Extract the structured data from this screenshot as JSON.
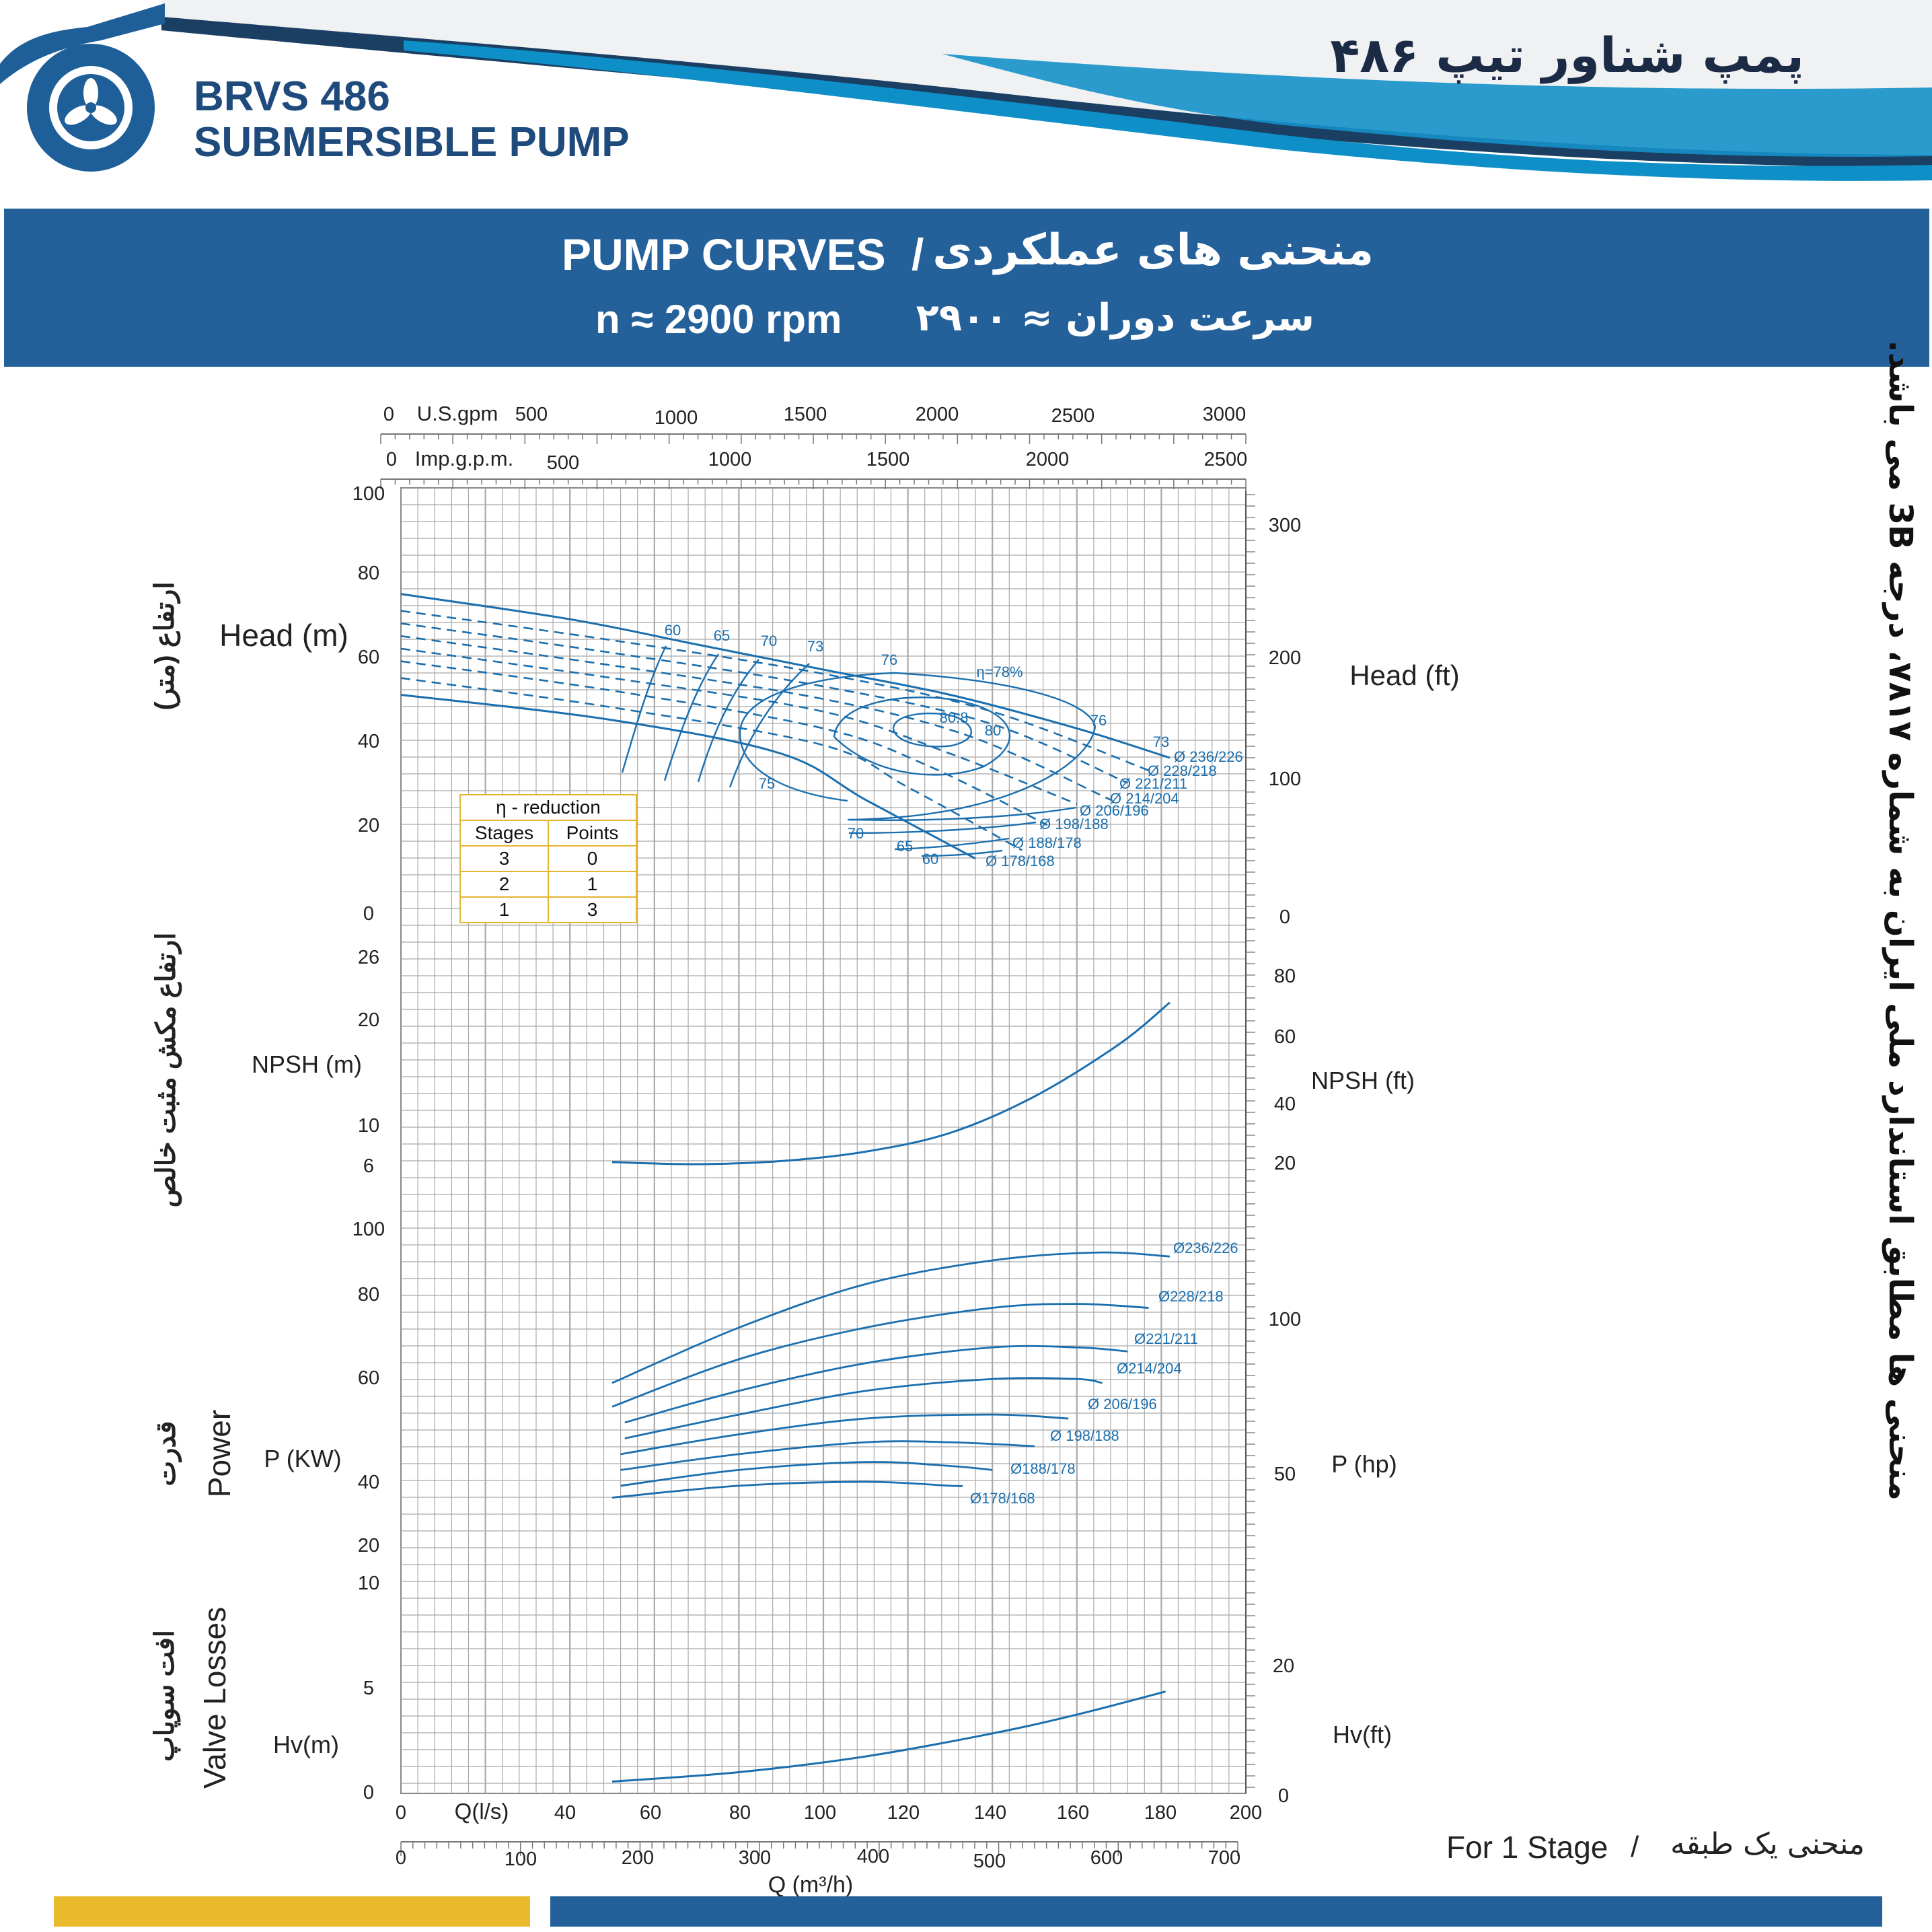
{
  "header": {
    "model": "BRVS 486",
    "type": "SUBMERSIBLE PUMP",
    "title_fa": "پمپ شناور تیپ ۴۸۶"
  },
  "banner": {
    "title_en": "PUMP CURVES",
    "separator": "/",
    "title_fa": "منحنی های عملکردی",
    "speed_en": "n ≈ 2900 rpm",
    "speed_fa": "سرعت دوران ≈ ۲۹۰۰"
  },
  "side_note_fa": "منحنی ها مطابق استاندارد ملی ایران به شماره ۷۸۱۷، درجه 3B می باشد.",
  "footer": {
    "stage_en": "For 1 Stage",
    "separator": "/",
    "stage_fa": "منحنی یک طبقه"
  },
  "colors": {
    "navy": "#24609a",
    "curve": "#1b6fae",
    "grid": "#a9a9a9",
    "footer_left": "#e9bb2c",
    "footer_right": "#24609a"
  },
  "chart_data": {
    "type": "line",
    "axes": {
      "top_usgpm": {
        "label": "U.S.gpm",
        "ticks": [
          0,
          500,
          1000,
          1500,
          2000,
          2500,
          3000
        ]
      },
      "top_impgpm": {
        "label": "Imp.g.p.m.",
        "ticks": [
          0,
          500,
          1000,
          1500,
          2000,
          2500
        ]
      },
      "bottom_ls": {
        "label": "Q(l/s)",
        "range": [
          0,
          200
        ],
        "ticks": [
          0,
          40,
          60,
          80,
          100,
          120,
          140,
          160,
          180,
          200
        ]
      },
      "bottom_m3h": {
        "label": "Q (m³/h)",
        "ticks": [
          0,
          100,
          200,
          300,
          400,
          500,
          600,
          700
        ]
      }
    },
    "head": {
      "label_en": "Head (m)",
      "label_fa": "ارتفاع (متر)",
      "label_ft": "Head (ft)",
      "ylim": [
        0,
        100
      ],
      "yticks": [
        0,
        20,
        40,
        60,
        80,
        100
      ],
      "ft_ticks": [
        0,
        100,
        200,
        300
      ],
      "impellers": [
        {
          "name": "Ø 236/226",
          "solid": [
            [
              0,
              76
            ],
            [
              40,
              70
            ],
            [
              70,
              64
            ],
            [
              100,
              58
            ],
            [
              130,
              52
            ],
            [
              160,
              44
            ],
            [
              182,
              37
            ]
          ]
        },
        {
          "name": "Ø 228/218",
          "dashed": [
            [
              0,
              72
            ],
            [
              50,
              65
            ],
            [
              100,
              57
            ],
            [
              140,
              48
            ],
            [
              177,
              34
            ]
          ]
        },
        {
          "name": "Ø 221/211",
          "dashed": [
            [
              0,
              69
            ],
            [
              50,
              62
            ],
            [
              100,
              54
            ],
            [
              140,
              45
            ],
            [
              172,
              31
            ]
          ]
        },
        {
          "name": "Ø 214/204",
          "dashed": [
            [
              0,
              66
            ],
            [
              50,
              59
            ],
            [
              100,
              51
            ],
            [
              135,
              42
            ],
            [
              168,
              27
            ]
          ]
        },
        {
          "name": "Ø 206/196",
          "dashed": [
            [
              0,
              63
            ],
            [
              50,
              56
            ],
            [
              100,
              48
            ],
            [
              130,
              38
            ],
            [
              160,
              26
            ]
          ]
        },
        {
          "name": "Ø 198/188",
          "dashed": [
            [
              0,
              60
            ],
            [
              50,
              53
            ],
            [
              100,
              44
            ],
            [
              125,
              35
            ],
            [
              153,
              21
            ]
          ]
        },
        {
          "name": "Ø 188/178",
          "dashed": [
            [
              0,
              56
            ],
            [
              50,
              49
            ],
            [
              100,
              40
            ],
            [
              120,
              30
            ],
            [
              147,
              15
            ]
          ]
        },
        {
          "name": "Ø 178/168",
          "solid": [
            [
              0,
              52
            ],
            [
              50,
              46
            ],
            [
              90,
              38
            ],
            [
              110,
              27
            ],
            [
              136,
              13
            ]
          ]
        }
      ],
      "efficiency_labels": [
        "60",
        "65",
        "70",
        "73",
        "75",
        "76",
        "η=78%",
        "80",
        "80.8"
      ],
      "reduction_table": {
        "title": "η - reduction",
        "columns": [
          "Stages",
          "Points"
        ],
        "rows": [
          [
            "3",
            "0"
          ],
          [
            "2",
            "1"
          ],
          [
            "1",
            "3"
          ]
        ]
      }
    },
    "npsh": {
      "label_en": "NPSH (m)",
      "label_fa": "ارتفاع مکش مثبت خالص",
      "label_ft": "NPSH (ft)",
      "yticks": [
        6,
        10,
        20,
        26
      ],
      "ft_ticks": [
        20,
        40,
        60,
        80
      ],
      "points": [
        [
          50,
          6.2
        ],
        [
          70,
          6.0
        ],
        [
          90,
          6.3
        ],
        [
          110,
          7.2
        ],
        [
          130,
          9.0
        ],
        [
          150,
          12.5
        ],
        [
          170,
          17.5
        ],
        [
          182,
          21.5
        ]
      ]
    },
    "power": {
      "label_en": "Power",
      "label_unit": "P (KW)",
      "label_fa": "قدرت",
      "label_hp": "P (hp)",
      "yticks": [
        20,
        40,
        60,
        80,
        100
      ],
      "hp_ticks": [
        50,
        100
      ],
      "series": [
        {
          "name": "Ø236/226",
          "points": [
            [
              50,
              61
            ],
            [
              80,
              75
            ],
            [
              110,
              86
            ],
            [
              140,
              92
            ],
            [
              165,
              94
            ],
            [
              182,
              93
            ]
          ]
        },
        {
          "name": "Ø228/218",
          "points": [
            [
              50,
              55
            ],
            [
              80,
              67
            ],
            [
              110,
              75
            ],
            [
              140,
              80
            ],
            [
              160,
              81
            ],
            [
              177,
              80
            ]
          ]
        },
        {
          "name": "Ø221/211",
          "points": [
            [
              53,
              51
            ],
            [
              80,
              59
            ],
            [
              110,
              66
            ],
            [
              140,
              70
            ],
            [
              160,
              70
            ],
            [
              172,
              69
            ]
          ]
        },
        {
          "name": "Ø214/204",
          "points": [
            [
              53,
              47
            ],
            [
              80,
              53
            ],
            [
              110,
              59
            ],
            [
              140,
              62
            ],
            [
              160,
              62
            ],
            [
              166,
              61
            ]
          ]
        },
        {
          "name": "Ø 206/196",
          "points": [
            [
              52,
              43
            ],
            [
              80,
              48
            ],
            [
              110,
              52
            ],
            [
              140,
              53
            ],
            [
              158,
              52
            ]
          ]
        },
        {
          "name": "Ø 198/188",
          "points": [
            [
              52,
              39
            ],
            [
              80,
              43
            ],
            [
              110,
              46
            ],
            [
              130,
              46
            ],
            [
              150,
              45
            ]
          ]
        },
        {
          "name": "Ø188/178",
          "points": [
            [
              52,
              35
            ],
            [
              80,
              39
            ],
            [
              110,
              41
            ],
            [
              130,
              40
            ],
            [
              140,
              39
            ]
          ]
        },
        {
          "name": "Ø178/168",
          "points": [
            [
              50,
              32
            ],
            [
              80,
              35
            ],
            [
              110,
              36
            ],
            [
              130,
              35
            ],
            [
              133,
              35
            ]
          ]
        }
      ]
    },
    "valve": {
      "label_en": "Valve Losses",
      "label_unit": "Hv(m)",
      "label_fa": "افت سوپاپ",
      "label_ft": "Hv(ft)",
      "yticks": [
        0,
        5,
        10
      ],
      "ft_ticks": [
        0,
        20
      ],
      "points": [
        [
          50,
          0.5
        ],
        [
          80,
          0.95
        ],
        [
          110,
          1.7
        ],
        [
          140,
          2.8
        ],
        [
          160,
          3.7
        ],
        [
          181,
          4.8
        ]
      ]
    }
  }
}
